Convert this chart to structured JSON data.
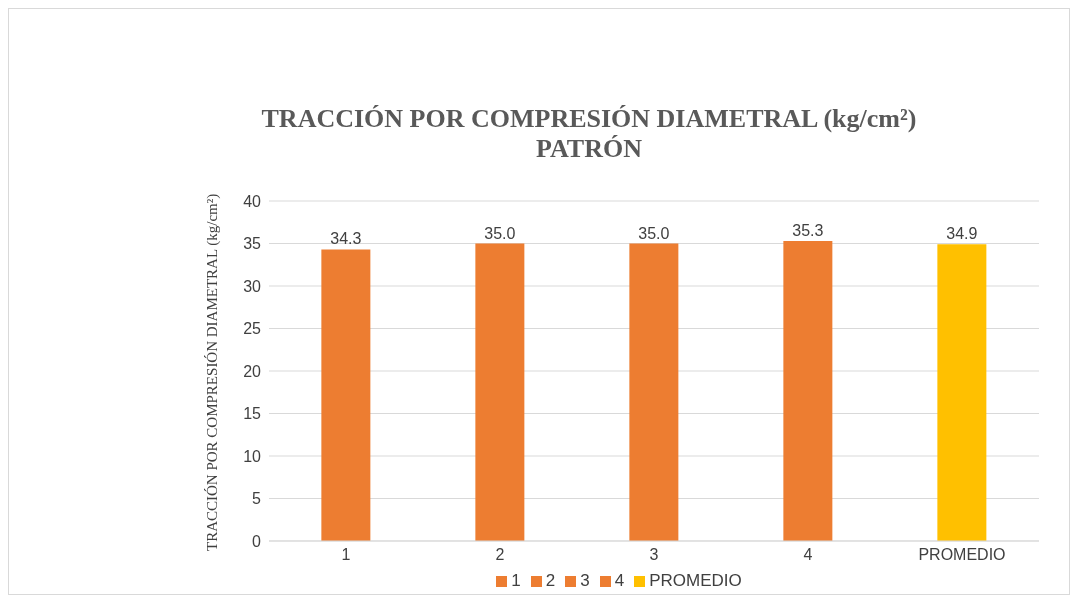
{
  "chart_data": {
    "type": "bar",
    "title": "TRACCIÓN POR COMPRESIÓN DIAMETRAL (kg/cm²)\nPATRÓN",
    "ylabel": "TRACCIÓN POR COMPRESIÓN DIAMETRAL (kg/cm²)",
    "categories": [
      "1",
      "2",
      "3",
      "4",
      "PROMEDIO"
    ],
    "series": [
      {
        "name": "1",
        "color": "#ed7d31",
        "values": [
          34.3,
          null,
          null,
          null,
          null
        ],
        "value_labels": [
          "34.3",
          null,
          null,
          null,
          null
        ]
      },
      {
        "name": "2",
        "color": "#ed7d31",
        "values": [
          null,
          35.0,
          null,
          null,
          null
        ],
        "value_labels": [
          null,
          "35.0",
          null,
          null,
          null
        ]
      },
      {
        "name": "3",
        "color": "#ed7d31",
        "values": [
          null,
          null,
          35.0,
          null,
          null
        ],
        "value_labels": [
          null,
          null,
          "35.0",
          null,
          null
        ]
      },
      {
        "name": "4",
        "color": "#ed7d31",
        "values": [
          null,
          null,
          null,
          35.3,
          null
        ],
        "value_labels": [
          null,
          null,
          null,
          "35.3",
          null
        ]
      },
      {
        "name": "PROMEDIO",
        "color": "#ffc000",
        "values": [
          null,
          null,
          null,
          null,
          34.9
        ],
        "value_labels": [
          null,
          null,
          null,
          null,
          "34.9"
        ]
      }
    ],
    "stacked": true,
    "ylim": [
      0,
      40
    ],
    "yticks": [
      0,
      5,
      10,
      15,
      20,
      25,
      30,
      35,
      40
    ],
    "grid": "y",
    "legend": "bottom"
  }
}
